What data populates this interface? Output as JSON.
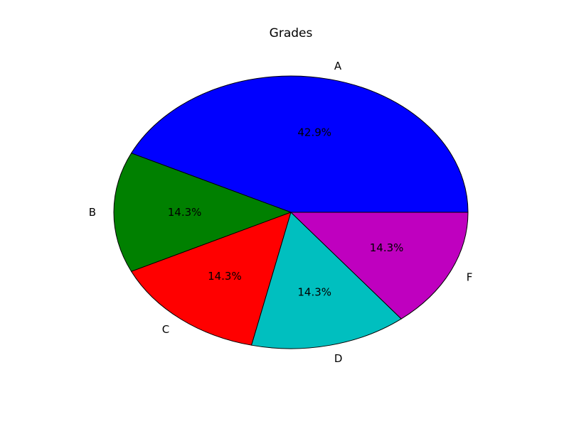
{
  "chart_data": {
    "type": "pie",
    "title": "Grades",
    "labels": [
      "A",
      "B",
      "C",
      "D",
      "F"
    ],
    "values": [
      42.9,
      14.3,
      14.3,
      14.3,
      14.3
    ],
    "value_labels": [
      "42.9%",
      "14.3%",
      "14.3%",
      "14.3%",
      "14.3%"
    ],
    "colors": [
      "#0000ff",
      "#008000",
      "#ff0000",
      "#00bfbf",
      "#bf00bf"
    ],
    "start_angle_deg": 0,
    "direction": "counterclockwise",
    "legend": "none"
  }
}
